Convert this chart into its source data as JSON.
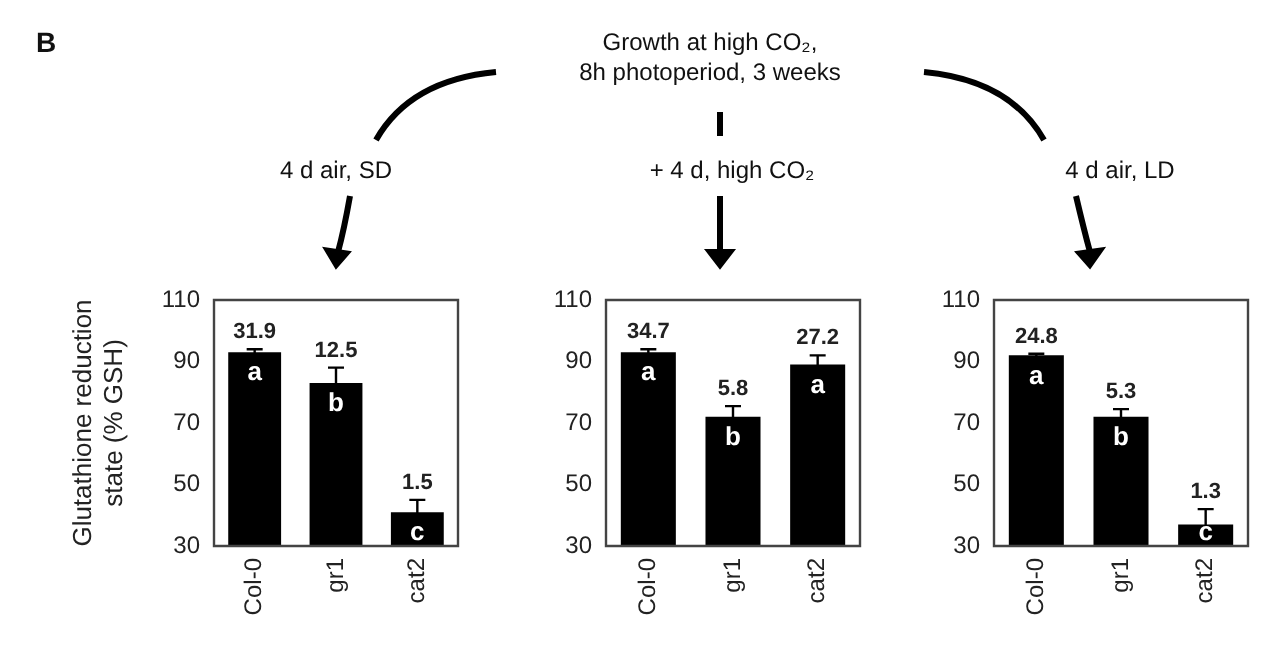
{
  "chart_data": [
    {
      "type": "bar",
      "title": "4 d air, SD",
      "ylabel": "Glutathione reduction state (% GSH)",
      "categories": [
        "Col-0",
        "gr1",
        "cat2"
      ],
      "values": [
        93,
        83,
        41
      ],
      "errors": [
        1,
        5,
        4
      ],
      "color": "#000000",
      "ylim": [
        30,
        110
      ],
      "yticks": [
        30,
        50,
        70,
        90,
        110
      ],
      "grid": false,
      "annotations": [
        "B",
        "Growth at high CO₂,\n8h photoperiod, 3 weeks",
        {
          "text": "31.9",
          "x": "Col-0",
          "y": 93
        },
        {
          "text": "a",
          "x": "Col-0",
          "y": 93
        },
        {
          "text": "12.5",
          "x": "gr1",
          "y": 83
        },
        {
          "text": "b",
          "x": "gr1",
          "y": 83
        },
        {
          "text": "1.5",
          "x": "cat2",
          "y": 41
        },
        {
          "text": "c",
          "x": "cat2",
          "y": 41
        }
      ]
    },
    {
      "type": "bar",
      "title": "+ 4 d, high CO₂",
      "categories": [
        "Col-0",
        "gr1",
        "cat2"
      ],
      "values": [
        93,
        72,
        89
      ],
      "errors": [
        1,
        3.5,
        3
      ],
      "color": "#000000",
      "ylim": [
        30,
        110
      ],
      "yticks": [
        30,
        50,
        70,
        90,
        110
      ],
      "grid": false,
      "annotations": [
        {
          "text": "34.7",
          "x": "Col-0",
          "y": 93
        },
        {
          "text": "a",
          "x": "Col-0",
          "y": 93
        },
        {
          "text": "5.8",
          "x": "gr1",
          "y": 72
        },
        {
          "text": "b",
          "x": "gr1",
          "y": 72
        },
        {
          "text": "27.2",
          "x": "cat2",
          "y": 89
        },
        {
          "text": "a",
          "x": "cat2",
          "y": 89
        }
      ]
    },
    {
      "type": "bar",
      "title": "4 d air, LD",
      "categories": [
        "Col-0",
        "gr1",
        "cat2"
      ],
      "values": [
        92,
        72,
        37
      ],
      "errors": [
        0.5,
        2.5,
        5
      ],
      "color": "#000000",
      "ylim": [
        30,
        110
      ],
      "yticks": [
        30,
        50,
        70,
        90,
        110
      ],
      "grid": false,
      "annotations": [
        {
          "text": "24.8",
          "x": "Col-0",
          "y": 92
        },
        {
          "text": "a",
          "x": "Col-0",
          "y": 92
        },
        {
          "text": "5.3",
          "x": "gr1",
          "y": 72
        },
        {
          "text": "b",
          "x": "gr1",
          "y": 72
        },
        {
          "text": "1.3",
          "x": "cat2",
          "y": 37
        },
        {
          "text": "c",
          "x": "cat2",
          "y": 37
        }
      ]
    }
  ]
}
